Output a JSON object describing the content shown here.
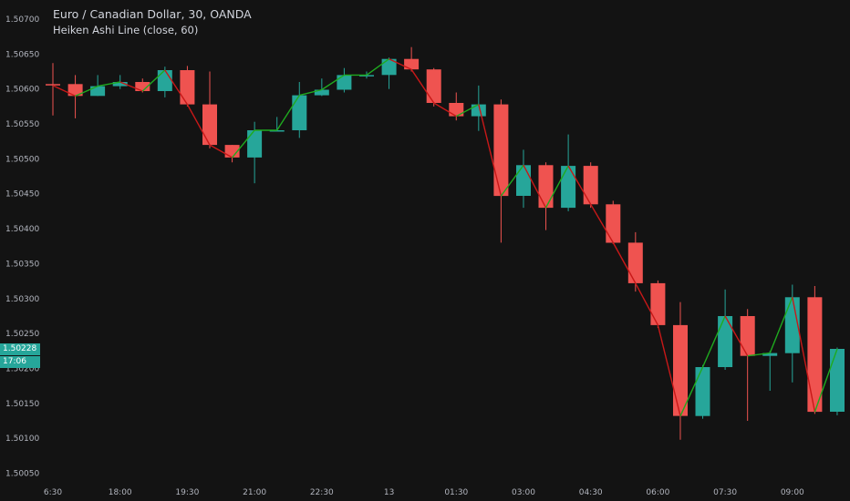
{
  "header": {
    "title": "Euro / Canadian Dollar, 30, OANDA",
    "indicator": "Heiken Ashi Line (close, 60)"
  },
  "last_price": {
    "value": "1.50228",
    "countdown": "17:06"
  },
  "colors": {
    "background": "#131313",
    "up": "#26a69a",
    "down": "#ef5350",
    "line_up": "#1faa1f",
    "line_down": "#c81818",
    "axis_text": "#b2b5be"
  },
  "chart_data": {
    "type": "candlestick",
    "title": "Euro / Canadian Dollar, 30, OANDA",
    "ylim": [
      1.5005,
      1.5071
    ],
    "y_ticks": [
      "1.50700",
      "1.50650",
      "1.50600",
      "1.50550",
      "1.50500",
      "1.50450",
      "1.50400",
      "1.50350",
      "1.50300",
      "1.50250",
      "1.50200",
      "1.50150",
      "1.50100",
      "1.50050"
    ],
    "x_ticks": [
      {
        "label": "6:30",
        "index": 0
      },
      {
        "label": "18:00",
        "index": 3
      },
      {
        "label": "19:30",
        "index": 6
      },
      {
        "label": "21:00",
        "index": 9
      },
      {
        "label": "22:30",
        "index": 12
      },
      {
        "label": "13",
        "index": 15
      },
      {
        "label": "01:30",
        "index": 18
      },
      {
        "label": "03:00",
        "index": 21
      },
      {
        "label": "04:30",
        "index": 24
      },
      {
        "label": "06:00",
        "index": 27
      },
      {
        "label": "07:30",
        "index": 30
      },
      {
        "label": "09:00",
        "index": 33
      }
    ],
    "candles": [
      {
        "o": 1.50607,
        "h": 1.50637,
        "l": 1.50562,
        "c": 1.50605
      },
      {
        "o": 1.50607,
        "h": 1.5062,
        "l": 1.50558,
        "c": 1.5059
      },
      {
        "o": 1.5059,
        "h": 1.5062,
        "l": 1.5059,
        "c": 1.50604
      },
      {
        "o": 1.50604,
        "h": 1.5062,
        "l": 1.506,
        "c": 1.5061
      },
      {
        "o": 1.5061,
        "h": 1.50615,
        "l": 1.50595,
        "c": 1.50597
      },
      {
        "o": 1.50597,
        "h": 1.50632,
        "l": 1.50588,
        "c": 1.50627
      },
      {
        "o": 1.50627,
        "h": 1.50633,
        "l": 1.50575,
        "c": 1.50578
      },
      {
        "o": 1.50578,
        "h": 1.50625,
        "l": 1.50515,
        "c": 1.5052
      },
      {
        "o": 1.5052,
        "h": 1.5052,
        "l": 1.50495,
        "c": 1.50502
      },
      {
        "o": 1.50502,
        "h": 1.50553,
        "l": 1.50465,
        "c": 1.50541
      },
      {
        "o": 1.50541,
        "h": 1.5056,
        "l": 1.5054,
        "c": 1.50541
      },
      {
        "o": 1.50541,
        "h": 1.5061,
        "l": 1.5053,
        "c": 1.50591
      },
      {
        "o": 1.50591,
        "h": 1.50615,
        "l": 1.5059,
        "c": 1.50599
      },
      {
        "o": 1.50599,
        "h": 1.5063,
        "l": 1.50595,
        "c": 1.5062
      },
      {
        "o": 1.5062,
        "h": 1.50625,
        "l": 1.50615,
        "c": 1.5062
      },
      {
        "o": 1.5062,
        "h": 1.50645,
        "l": 1.506,
        "c": 1.50643
      },
      {
        "o": 1.50643,
        "h": 1.5066,
        "l": 1.50625,
        "c": 1.50628
      },
      {
        "o": 1.50628,
        "h": 1.5063,
        "l": 1.50575,
        "c": 1.5058
      },
      {
        "o": 1.5058,
        "h": 1.50595,
        "l": 1.50555,
        "c": 1.50561
      },
      {
        "o": 1.50561,
        "h": 1.50605,
        "l": 1.5054,
        "c": 1.50578
      },
      {
        "o": 1.50578,
        "h": 1.50585,
        "l": 1.5038,
        "c": 1.50447
      },
      {
        "o": 1.50447,
        "h": 1.50513,
        "l": 1.5043,
        "c": 1.50491
      },
      {
        "o": 1.50491,
        "h": 1.50495,
        "l": 1.50398,
        "c": 1.5043
      },
      {
        "o": 1.5043,
        "h": 1.50535,
        "l": 1.50425,
        "c": 1.5049
      },
      {
        "o": 1.5049,
        "h": 1.50495,
        "l": 1.5043,
        "c": 1.50435
      },
      {
        "o": 1.50435,
        "h": 1.5044,
        "l": 1.50378,
        "c": 1.5038
      },
      {
        "o": 1.5038,
        "h": 1.50395,
        "l": 1.5031,
        "c": 1.50322
      },
      {
        "o": 1.50322,
        "h": 1.50326,
        "l": 1.50258,
        "c": 1.50262
      },
      {
        "o": 1.50262,
        "h": 1.50295,
        "l": 1.50098,
        "c": 1.50132
      },
      {
        "o": 1.50132,
        "h": 1.50205,
        "l": 1.50128,
        "c": 1.50202
      },
      {
        "o": 1.50202,
        "h": 1.50313,
        "l": 1.50198,
        "c": 1.50275
      },
      {
        "o": 1.50275,
        "h": 1.50285,
        "l": 1.50125,
        "c": 1.50218
      },
      {
        "o": 1.50218,
        "h": 1.50225,
        "l": 1.50168,
        "c": 1.50222
      },
      {
        "o": 1.50222,
        "h": 1.5032,
        "l": 1.5018,
        "c": 1.50302
      },
      {
        "o": 1.50302,
        "h": 1.50318,
        "l": 1.50135,
        "c": 1.50138
      },
      {
        "o": 1.50138,
        "h": 1.5023,
        "l": 1.50133,
        "c": 1.50228
      }
    ]
  }
}
